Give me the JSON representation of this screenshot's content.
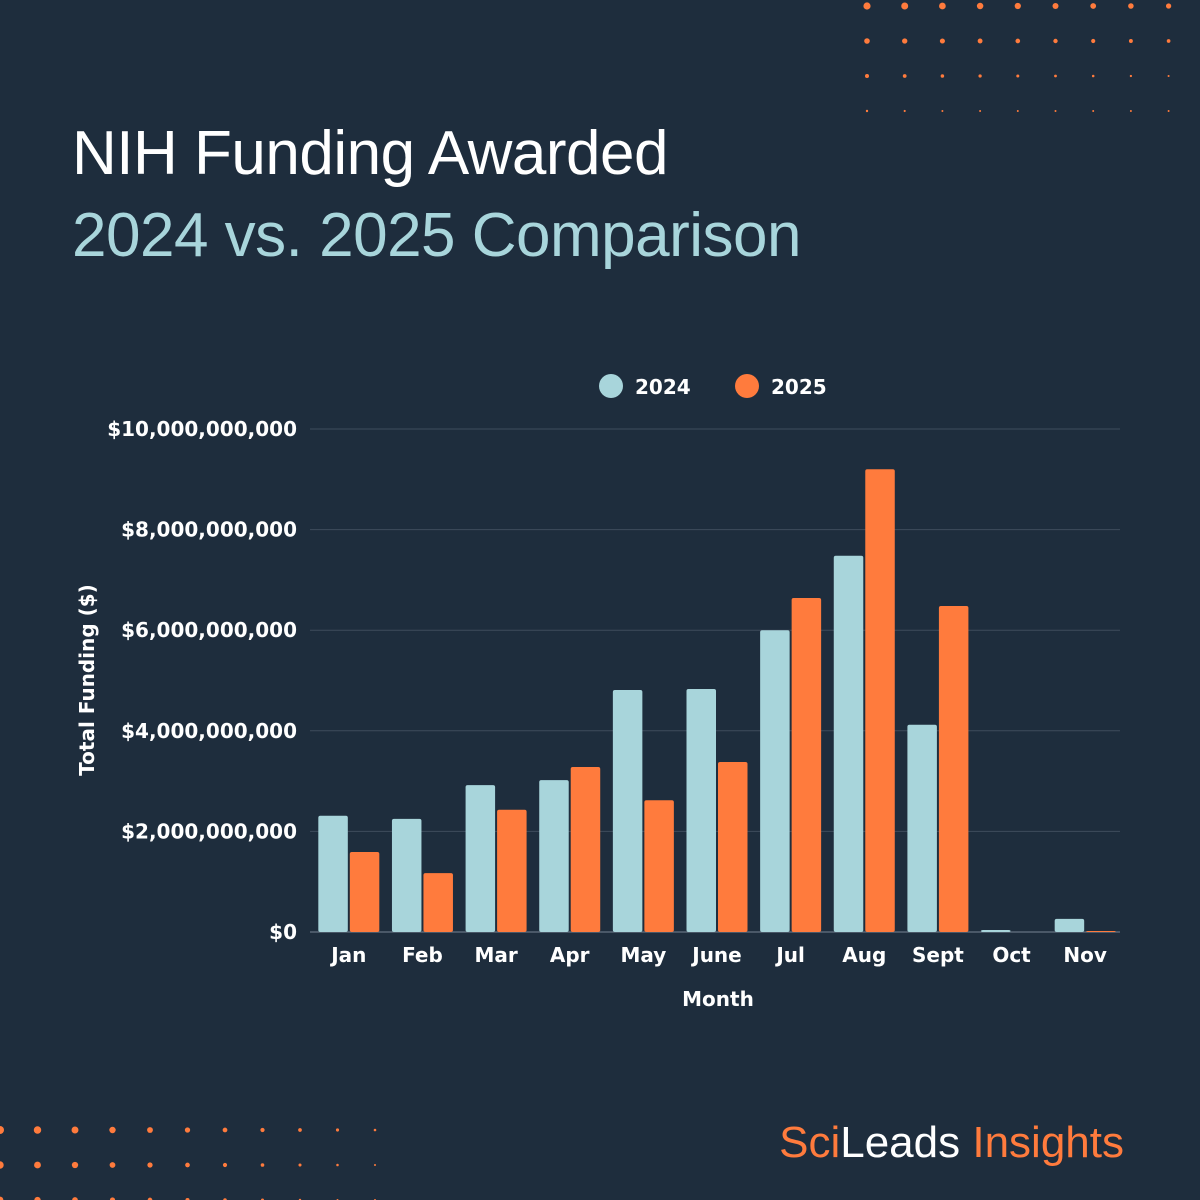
{
  "title": "NIH Funding Awarded",
  "subtitle": "2024 vs. 2025 Comparison",
  "brand": {
    "part1": "Sci",
    "part2": "Leads",
    "part3": " Insights"
  },
  "colors": {
    "background": "#1e2d3d",
    "series_2024": "#a8d5db",
    "series_2025": "#ff7b3d",
    "accent": "#ff7b3d"
  },
  "chart_data": {
    "type": "bar",
    "title": "",
    "xlabel": "Month",
    "ylabel": "Total Funding ($)",
    "ylim": [
      0,
      10000000000
    ],
    "yticks": [
      0,
      2000000000,
      4000000000,
      6000000000,
      8000000000,
      10000000000
    ],
    "ytick_labels": [
      "$0",
      "$2,000,000,000",
      "$4,000,000,000",
      "$6,000,000,000",
      "$8,000,000,000",
      "$10,000,000,000"
    ],
    "grid": true,
    "legend": "top-center",
    "categories": [
      "Jan",
      "Feb",
      "Mar",
      "Apr",
      "May",
      "June",
      "Jul",
      "Aug",
      "Sept",
      "Oct",
      "Nov"
    ],
    "series": [
      {
        "name": "2024",
        "color": "#a8d5db",
        "values": [
          2310000000,
          2250000000,
          2920000000,
          3020000000,
          4810000000,
          4830000000,
          6000000000,
          7480000000,
          4120000000,
          40000000,
          260000000
        ]
      },
      {
        "name": "2025",
        "color": "#ff7b3d",
        "values": [
          1590000000,
          1170000000,
          2430000000,
          3280000000,
          2620000000,
          3380000000,
          6640000000,
          9200000000,
          6480000000,
          0,
          20000000
        ]
      }
    ]
  }
}
